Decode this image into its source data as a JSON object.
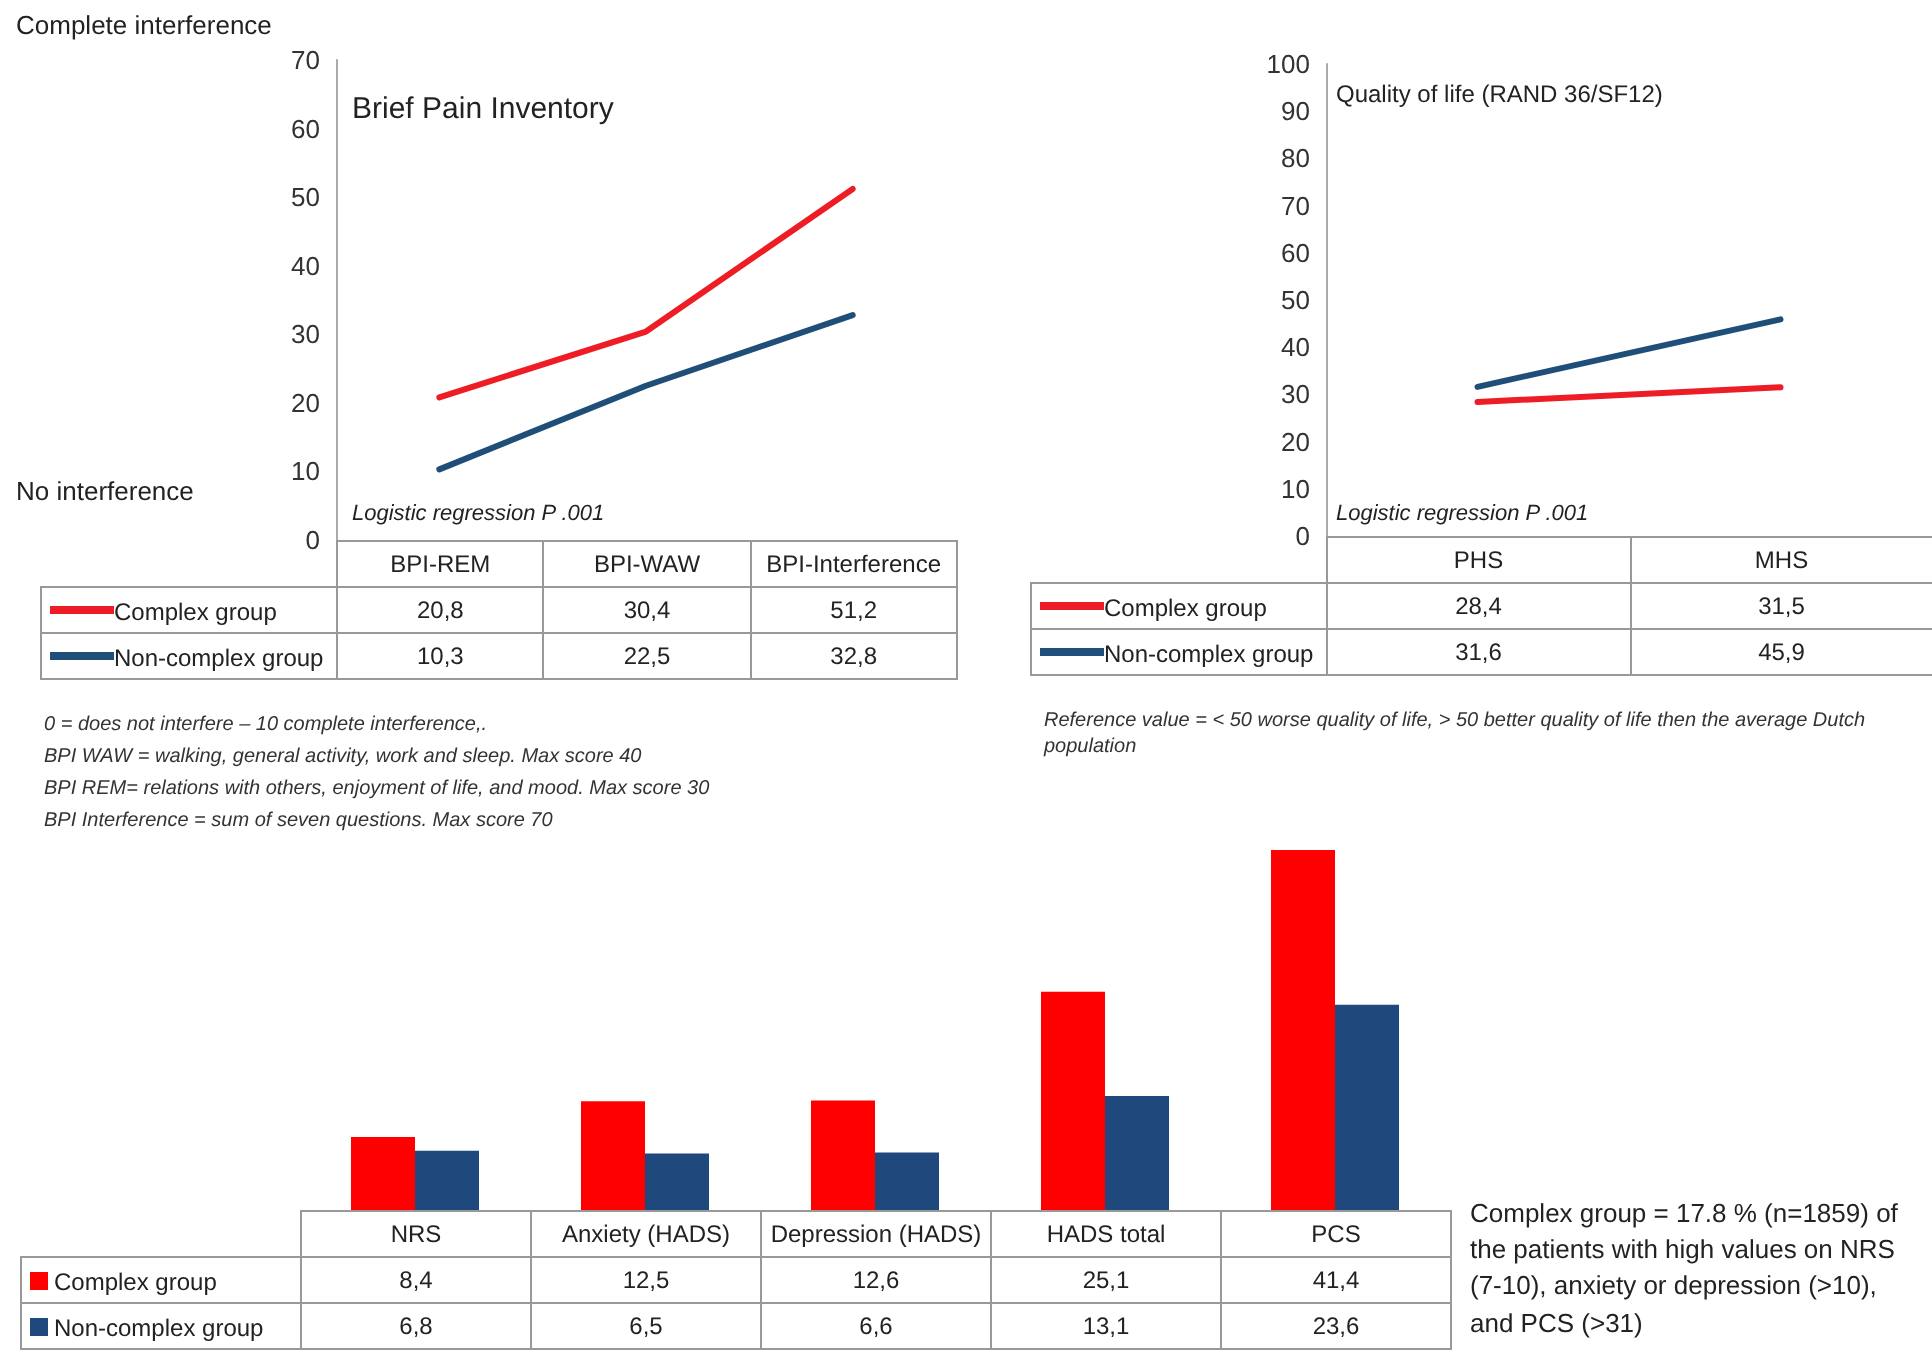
{
  "chart_data": [
    {
      "type": "line",
      "title": "Brief Pain Inventory",
      "categories": [
        "BPI-REM",
        "BPI-WAW",
        "BPI-Interference"
      ],
      "series": [
        {
          "name": "Complex group",
          "color": "#ee1c24",
          "values": [
            20.8,
            30.4,
            51.2
          ],
          "value_labels": [
            "20,8",
            "30,4",
            "51,2"
          ]
        },
        {
          "name": "Non-complex group",
          "color": "#1f4e79",
          "values": [
            10.3,
            22.5,
            32.8
          ],
          "value_labels": [
            "10,3",
            "22,5",
            "32,8"
          ]
        }
      ],
      "ylim": [
        0,
        70
      ],
      "yticks": [
        0,
        10,
        20,
        30,
        40,
        50,
        60,
        70
      ],
      "grid": false,
      "legend": "left",
      "marker": "none",
      "line_style": "solid",
      "annotations": [
        "Complete  interference",
        "No  interference",
        "Logistic regression P .001",
        "0 = does not interfere – 10 complete interference,.",
        "BPI WAW = walking, general activity, work and sleep.  Max score 40",
        "BPI REM= relations with others, enjoyment of life, and mood. Max score 30",
        "BPI Interference = sum of seven questions. Max score 70"
      ]
    },
    {
      "type": "line",
      "title": "Quality of life (RAND  36/SF12)",
      "categories": [
        "PHS",
        "MHS"
      ],
      "series": [
        {
          "name": "Complex group",
          "color": "#ee1c24",
          "values": [
            28.4,
            31.5
          ],
          "value_labels": [
            "28,4",
            "31,5"
          ]
        },
        {
          "name": "Non-complex group",
          "color": "#1f4e79",
          "values": [
            31.6,
            45.9
          ],
          "value_labels": [
            "31,6",
            "45,9"
          ]
        }
      ],
      "ylim": [
        0,
        100
      ],
      "yticks": [
        0,
        10,
        20,
        30,
        40,
        50,
        60,
        70,
        80,
        90,
        100
      ],
      "grid": false,
      "legend": "left",
      "marker": "none",
      "line_style": "solid",
      "annotations": [
        "Logistic regression P .001",
        "Reference value  = < 50 worse quality of life, > 50 better quality of life then the average Dutch population"
      ]
    },
    {
      "type": "bar",
      "categories": [
        "NRS",
        "Anxiety (HADS)",
        "Depression (HADS)",
        "HADS total",
        "PCS"
      ],
      "series": [
        {
          "name": "Complex group",
          "color": "#ff0000",
          "values": [
            8.4,
            12.5,
            12.6,
            25.1,
            41.4
          ],
          "value_labels": [
            "8,4",
            "12,5",
            "12,6",
            "25,1",
            "41,4"
          ]
        },
        {
          "name": "Non-complex group",
          "color": "#1f497d",
          "values": [
            6.8,
            6.5,
            6.6,
            13.1,
            23.6
          ],
          "value_labels": [
            "6,8",
            "6,5",
            "6,6",
            "13,1",
            "23,6"
          ]
        }
      ],
      "tick_labels": "x",
      "grid": false,
      "legend": "left",
      "annotations": [
        "Complex group = 17.8  % (n=1859) of the patients with high values on NRS (7-10), anxiety or depression (>10), and PCS (>31)"
      ]
    }
  ]
}
